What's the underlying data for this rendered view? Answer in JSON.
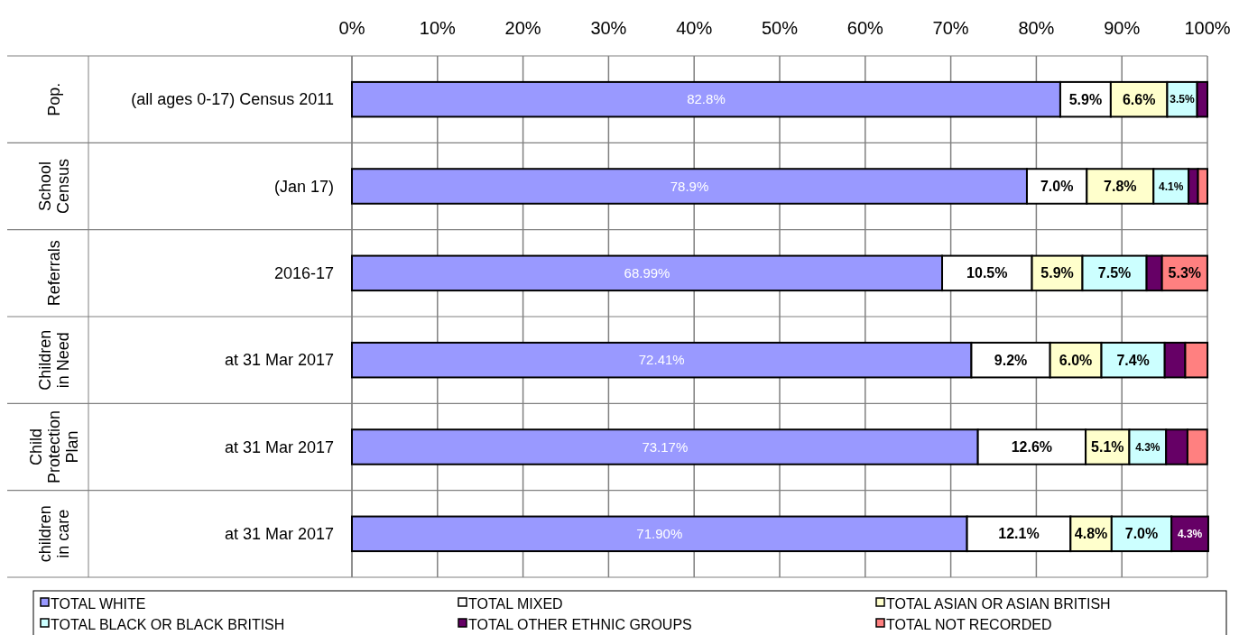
{
  "chart_data": {
    "type": "bar",
    "orientation": "horizontal",
    "stacked": true,
    "grid": "x",
    "legend": "bottom",
    "categories": [
      "(all ages 0-17) Census 2011",
      "(Jan 17)",
      "2016-17",
      "at 31 Mar 2017",
      "at 31 Mar 2017",
      "at 31 Mar 2017"
    ],
    "annotations": [
      "Pop.",
      "School Census",
      "Referrals",
      "Children in Need",
      "Child Protection Plan",
      "children in care"
    ],
    "xlim": [
      0,
      100
    ],
    "xticks": [
      {
        "value": 0,
        "label": "0%"
      },
      {
        "value": 10,
        "label": "10%"
      },
      {
        "value": 20,
        "label": "20%"
      },
      {
        "value": 30,
        "label": "30%"
      },
      {
        "value": 40,
        "label": "40%"
      },
      {
        "value": 50,
        "label": "50%"
      },
      {
        "value": 60,
        "label": "60%"
      },
      {
        "value": 70,
        "label": "70%"
      },
      {
        "value": 80,
        "label": "80%"
      },
      {
        "value": 90,
        "label": "90%"
      },
      {
        "value": 100,
        "label": "100%"
      }
    ],
    "series": [
      {
        "name": "TOTAL WHITE",
        "color": "#9999ff",
        "values": [
          82.8,
          78.9,
          68.99,
          72.41,
          73.17,
          71.9
        ],
        "value_labels": [
          "82.8%",
          "78.9%",
          "68.99%",
          "72.41%",
          "73.17%",
          "71.90%"
        ]
      },
      {
        "name": "TOTAL MIXED",
        "color": "#ffffff",
        "values": [
          5.9,
          7.0,
          10.5,
          9.2,
          12.6,
          12.1
        ],
        "value_labels": [
          "5.9%",
          "7.0%",
          "10.5%",
          "9.2%",
          "12.6%",
          "12.1%"
        ]
      },
      {
        "name": "TOTAL ASIAN OR ASIAN BRITISH",
        "color": "#ffffcc",
        "values": [
          6.6,
          7.8,
          5.9,
          6.0,
          5.1,
          4.8
        ],
        "value_labels": [
          "6.6%",
          "7.8%",
          "5.9%",
          "6.0%",
          "5.1%",
          "4.8%"
        ]
      },
      {
        "name": "TOTAL BLACK OR BLACK BRITISH",
        "color": "#ccffff",
        "values": [
          3.5,
          4.1,
          7.5,
          7.4,
          4.3,
          7.0
        ],
        "value_labels": [
          "3.5%",
          "4.1%",
          "7.5%",
          "7.4%",
          "4.3%",
          "7.0%"
        ]
      },
      {
        "name": "TOTAL OTHER ETHNIC GROUPS",
        "color": "#660066",
        "values": [
          1.2,
          1.1,
          1.8,
          2.4,
          2.5,
          4.3
        ],
        "value_labels": [
          null,
          null,
          null,
          null,
          null,
          "4.3%"
        ]
      },
      {
        "name": "TOTAL NOT RECORDED",
        "color": "#ff8080",
        "values": [
          null,
          1.1,
          5.3,
          2.6,
          2.3,
          null
        ],
        "value_labels": [
          null,
          null,
          "5.3%",
          null,
          null,
          null
        ]
      }
    ]
  }
}
